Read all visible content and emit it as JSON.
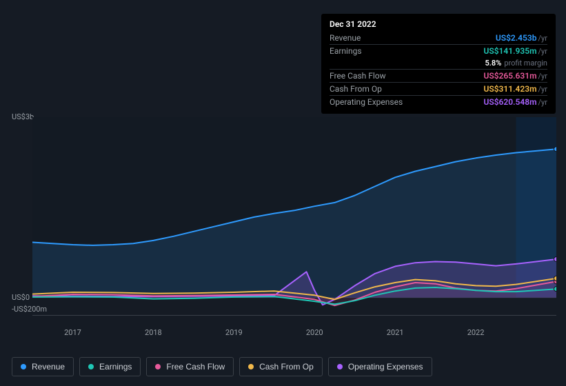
{
  "colors": {
    "revenue": "#2e9bff",
    "earnings": "#1fc7b6",
    "fcf": "#e75a9b",
    "cash_op": "#f2b94b",
    "opex": "#a862ff",
    "bg": "#151b24",
    "grid_text": "#9aa0a6",
    "highlight_band": "#0e2238",
    "axis_line": "#3a4048"
  },
  "tooltip": {
    "date": "Dec 31 2022",
    "rows": [
      {
        "key": "revenue",
        "label": "Revenue",
        "value": "US$2.453b",
        "unit": "/yr",
        "color": "#2e9bff"
      },
      {
        "key": "earnings",
        "label": "Earnings",
        "value": "US$141.935m",
        "unit": "/yr",
        "color": "#1fc7b6"
      },
      {
        "key": "fcf",
        "label": "Free Cash Flow",
        "value": "US$265.631m",
        "unit": "/yr",
        "color": "#e75a9b"
      },
      {
        "key": "cash_op",
        "label": "Cash From Op",
        "value": "US$311.423m",
        "unit": "/yr",
        "color": "#f2b94b"
      },
      {
        "key": "opex",
        "label": "Operating Expenses",
        "value": "US$620.548m",
        "unit": "/yr",
        "color": "#a862ff"
      }
    ],
    "sub": {
      "pct": "5.8%",
      "text": "profit margin"
    }
  },
  "legend": [
    {
      "key": "revenue",
      "label": "Revenue",
      "color": "#2e9bff"
    },
    {
      "key": "earnings",
      "label": "Earnings",
      "color": "#1fc7b6"
    },
    {
      "key": "fcf",
      "label": "Free Cash Flow",
      "color": "#e75a9b"
    },
    {
      "key": "cash_op",
      "label": "Cash From Op",
      "color": "#f2b94b"
    },
    {
      "key": "opex",
      "label": "Operating Expenses",
      "color": "#a862ff"
    }
  ],
  "chart": {
    "type": "line-area",
    "x_years": [
      2016.5,
      2023.0
    ],
    "x_ticks": [
      2017,
      2018,
      2019,
      2020,
      2021,
      2022
    ],
    "y_range_m": [
      -300,
      3000
    ],
    "y_ticks": [
      {
        "v": 3000,
        "label": "US$3b"
      },
      {
        "v": 0,
        "label": "US$0"
      },
      {
        "v": -200,
        "label": "-US$200m"
      }
    ],
    "highlight_x": [
      2022.5,
      2023.0
    ],
    "marker_x": 2023.0,
    "series": {
      "revenue": {
        "color": "#2e9bff",
        "width": 2,
        "area_opacity": 0.15,
        "points": [
          [
            2016.5,
            920
          ],
          [
            2016.75,
            900
          ],
          [
            2017.0,
            880
          ],
          [
            2017.25,
            870
          ],
          [
            2017.5,
            880
          ],
          [
            2017.75,
            900
          ],
          [
            2018.0,
            950
          ],
          [
            2018.25,
            1020
          ],
          [
            2018.5,
            1100
          ],
          [
            2018.75,
            1180
          ],
          [
            2019.0,
            1260
          ],
          [
            2019.25,
            1340
          ],
          [
            2019.5,
            1400
          ],
          [
            2019.75,
            1450
          ],
          [
            2020.0,
            1520
          ],
          [
            2020.25,
            1580
          ],
          [
            2020.5,
            1700
          ],
          [
            2020.75,
            1850
          ],
          [
            2021.0,
            2000
          ],
          [
            2021.25,
            2100
          ],
          [
            2021.5,
            2180
          ],
          [
            2021.75,
            2260
          ],
          [
            2022.0,
            2320
          ],
          [
            2022.25,
            2370
          ],
          [
            2022.5,
            2410
          ],
          [
            2022.75,
            2440
          ],
          [
            2023.0,
            2470
          ]
        ]
      },
      "opex": {
        "color": "#a862ff",
        "width": 2,
        "area_opacity": 0.2,
        "points": [
          [
            2016.5,
            30
          ],
          [
            2017.0,
            25
          ],
          [
            2017.5,
            20
          ],
          [
            2018.0,
            20
          ],
          [
            2018.5,
            25
          ],
          [
            2019.0,
            30
          ],
          [
            2019.5,
            35
          ],
          [
            2019.9,
            430
          ],
          [
            2020.0,
            120
          ],
          [
            2020.1,
            -120
          ],
          [
            2020.25,
            -30
          ],
          [
            2020.5,
            200
          ],
          [
            2020.75,
            400
          ],
          [
            2021.0,
            520
          ],
          [
            2021.25,
            580
          ],
          [
            2021.5,
            600
          ],
          [
            2021.75,
            590
          ],
          [
            2022.0,
            560
          ],
          [
            2022.25,
            530
          ],
          [
            2022.5,
            560
          ],
          [
            2022.75,
            600
          ],
          [
            2023.0,
            640
          ]
        ]
      },
      "cash_op": {
        "color": "#f2b94b",
        "width": 2,
        "area_opacity": 0.0,
        "points": [
          [
            2016.5,
            60
          ],
          [
            2017.0,
            90
          ],
          [
            2017.5,
            85
          ],
          [
            2018.0,
            70
          ],
          [
            2018.5,
            75
          ],
          [
            2019.0,
            90
          ],
          [
            2019.5,
            110
          ],
          [
            2020.0,
            40
          ],
          [
            2020.25,
            -30
          ],
          [
            2020.5,
            80
          ],
          [
            2020.75,
            180
          ],
          [
            2021.0,
            250
          ],
          [
            2021.25,
            300
          ],
          [
            2021.5,
            280
          ],
          [
            2021.75,
            230
          ],
          [
            2022.0,
            200
          ],
          [
            2022.25,
            190
          ],
          [
            2022.5,
            220
          ],
          [
            2022.75,
            270
          ],
          [
            2023.0,
            320
          ]
        ]
      },
      "fcf": {
        "color": "#e75a9b",
        "width": 2,
        "area_opacity": 0.1,
        "points": [
          [
            2016.5,
            20
          ],
          [
            2017.0,
            55
          ],
          [
            2017.5,
            50
          ],
          [
            2018.0,
            30
          ],
          [
            2018.5,
            35
          ],
          [
            2019.0,
            45
          ],
          [
            2019.5,
            55
          ],
          [
            2020.0,
            -30
          ],
          [
            2020.25,
            -130
          ],
          [
            2020.5,
            -40
          ],
          [
            2020.75,
            90
          ],
          [
            2021.0,
            180
          ],
          [
            2021.25,
            250
          ],
          [
            2021.5,
            230
          ],
          [
            2021.75,
            160
          ],
          [
            2022.0,
            120
          ],
          [
            2022.25,
            110
          ],
          [
            2022.5,
            150
          ],
          [
            2022.75,
            210
          ],
          [
            2023.0,
            270
          ]
        ]
      },
      "earnings": {
        "color": "#1fc7b6",
        "width": 2,
        "area_opacity": 0.0,
        "points": [
          [
            2016.5,
            10
          ],
          [
            2017.0,
            15
          ],
          [
            2017.5,
            10
          ],
          [
            2018.0,
            -20
          ],
          [
            2018.5,
            -10
          ],
          [
            2019.0,
            10
          ],
          [
            2019.5,
            20
          ],
          [
            2020.0,
            -60
          ],
          [
            2020.25,
            -110
          ],
          [
            2020.5,
            -50
          ],
          [
            2020.75,
            40
          ],
          [
            2021.0,
            110
          ],
          [
            2021.25,
            160
          ],
          [
            2021.5,
            170
          ],
          [
            2021.75,
            150
          ],
          [
            2022.0,
            120
          ],
          [
            2022.25,
            100
          ],
          [
            2022.5,
            100
          ],
          [
            2022.75,
            120
          ],
          [
            2023.0,
            145
          ]
        ]
      }
    },
    "series_order_back_to_front": [
      "revenue",
      "opex",
      "fcf",
      "cash_op",
      "earnings"
    ]
  }
}
